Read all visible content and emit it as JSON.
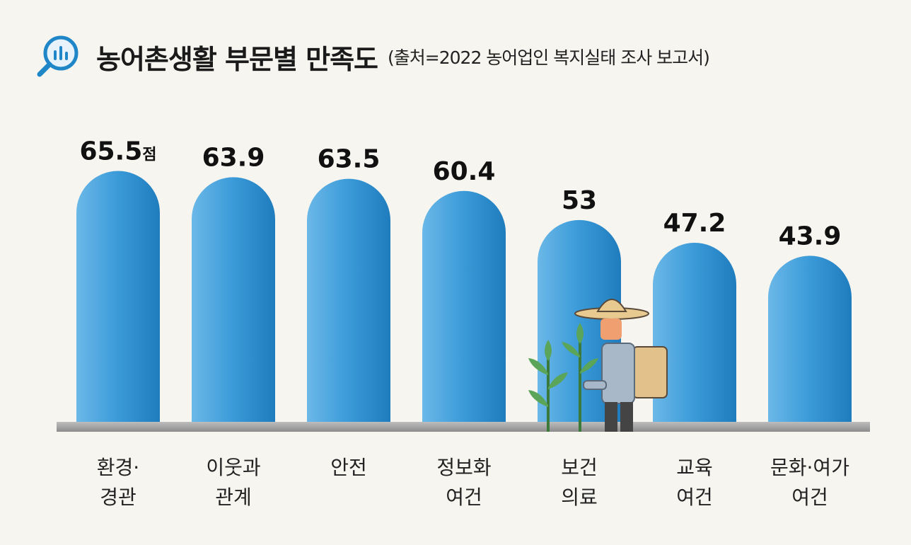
{
  "header": {
    "title": "농어촌생활 부문별 만족도",
    "source": "(출처=2022 농어업인 복지실태 조사 보고서)",
    "icon": "chart-magnifier-icon"
  },
  "chart_data": {
    "type": "bar",
    "title": "농어촌생활 부문별 만족도",
    "categories": [
      [
        "환경·",
        "경관"
      ],
      [
        "이웃과",
        "관계"
      ],
      [
        "안전"
      ],
      [
        "정보화",
        "여건"
      ],
      [
        "보건",
        "의료"
      ],
      [
        "교육",
        "여건"
      ],
      [
        "문화·여가",
        "여건"
      ]
    ],
    "values": [
      65.5,
      63.9,
      63.5,
      60.4,
      53,
      47.2,
      43.9
    ],
    "value_labels": [
      "65.5",
      "63.9",
      "63.5",
      "60.4",
      "53",
      "47.2",
      "43.9"
    ],
    "unit": "점",
    "ylim": [
      0,
      100
    ],
    "grid": false,
    "bar_color": "#3a9ad8"
  },
  "illustration": {
    "name": "farmer-icon"
  }
}
